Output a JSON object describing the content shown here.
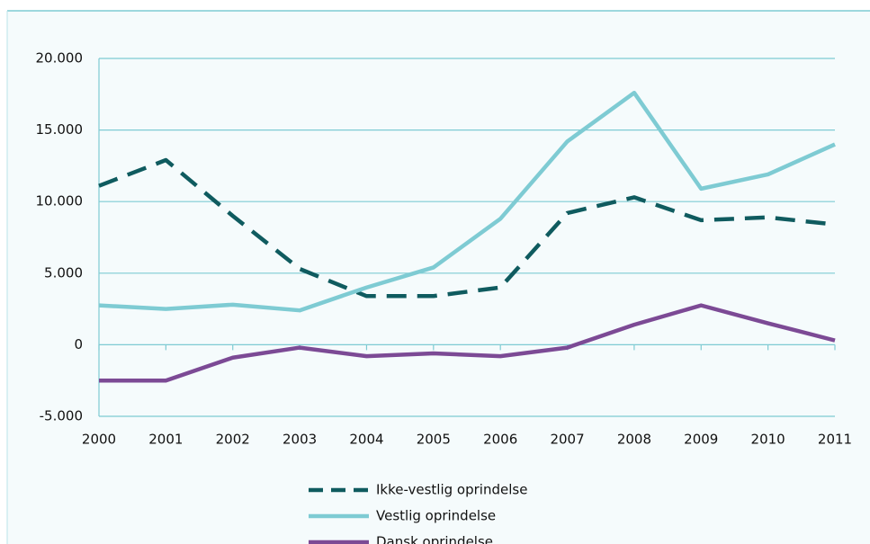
{
  "chart_data": {
    "type": "line",
    "x": [
      2000,
      2001,
      2002,
      2003,
      2004,
      2005,
      2006,
      2007,
      2008,
      2009,
      2010,
      2011
    ],
    "xlim": [
      2000,
      2011
    ],
    "xticks": [
      2000,
      2001,
      2002,
      2003,
      2004,
      2005,
      2006,
      2007,
      2008,
      2009,
      2010,
      2011
    ],
    "ylim": [
      -5000,
      20000
    ],
    "yticks": [
      {
        "value": -5000,
        "label": "-5.000"
      },
      0,
      {
        "value": 5000,
        "label": "5.000"
      },
      {
        "value": 10000,
        "label": "10.000"
      },
      {
        "value": 15000,
        "label": "15.000"
      },
      {
        "value": 20000,
        "label": "20.000"
      }
    ],
    "grid": true,
    "legend": "bottom",
    "series": [
      {
        "name": "Ikke-vestlig oprindelse",
        "color": "#0f5b5f",
        "dashed": true,
        "values": [
          11100,
          12900,
          9000,
          5300,
          3400,
          3400,
          4000,
          9200,
          10300,
          8700,
          8900,
          8400
        ]
      },
      {
        "name": "Vestlig oprindelse",
        "color": "#7ecbd3",
        "dashed": false,
        "values": [
          2750,
          2500,
          2800,
          2400,
          4000,
          5400,
          8800,
          14200,
          17600,
          10900,
          11900,
          14000
        ]
      },
      {
        "name": "Dansk oprindelse",
        "color": "#7c4a95",
        "dashed": false,
        "values": [
          -2500,
          -2500,
          -900,
          -200,
          -800,
          -600,
          -800,
          -200,
          1400,
          2750,
          1500,
          300
        ]
      }
    ]
  }
}
